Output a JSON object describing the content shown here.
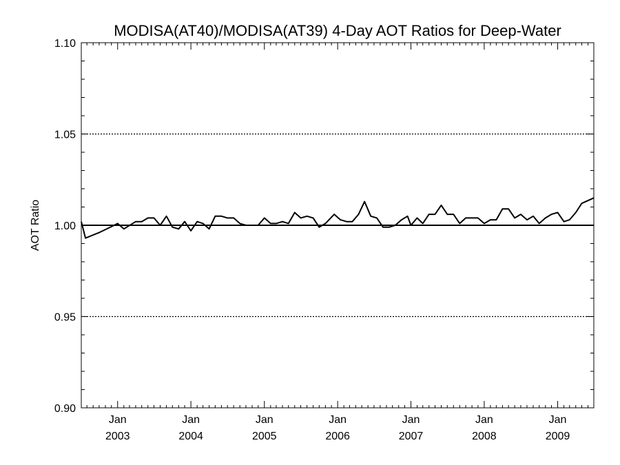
{
  "chart_data": {
    "type": "line",
    "title": "MODISA(AT40)/MODISA(AT39) 4-Day AOT Ratios for Deep-Water",
    "xlabel": "",
    "ylabel": "AOT Ratio",
    "ylim": [
      0.9,
      1.1
    ],
    "xlim": [
      "2002-07-04",
      "2009-06-30"
    ],
    "y_ticks": [
      {
        "value": 0.9,
        "label": "0.90"
      },
      {
        "value": 0.95,
        "label": "0.95"
      },
      {
        "value": 1.0,
        "label": "1.00"
      },
      {
        "value": 1.05,
        "label": "1.05"
      },
      {
        "value": 1.1,
        "label": "1.10"
      }
    ],
    "y_minor_step": 0.01,
    "x_ticks": [
      {
        "date": "2003-01-01",
        "month": "Jan",
        "year": "2003"
      },
      {
        "date": "2004-01-01",
        "month": "Jan",
        "year": "2004"
      },
      {
        "date": "2005-01-01",
        "month": "Jan",
        "year": "2005"
      },
      {
        "date": "2006-01-01",
        "month": "Jan",
        "year": "2006"
      },
      {
        "date": "2007-01-01",
        "month": "Jan",
        "year": "2007"
      },
      {
        "date": "2008-01-01",
        "month": "Jan",
        "year": "2008"
      },
      {
        "date": "2009-01-01",
        "month": "Jan",
        "year": "2009"
      }
    ],
    "grid": "dotted horizontal at 0.95, 1.05",
    "reference_line": 1.0,
    "series": [
      {
        "x": [
          "2002-07-04",
          "2002-07-25",
          "2002-10-01",
          "2002-12-15",
          "2003-01-01",
          "2003-02-01",
          "2003-04-01",
          "2003-05-01",
          "2003-06-01",
          "2003-07-01",
          "2003-08-01",
          "2003-09-01",
          "2003-10-01",
          "2003-11-01",
          "2003-12-01",
          "2004-01-01",
          "2004-02-01",
          "2004-03-01",
          "2004-04-01",
          "2004-05-01",
          "2004-06-01",
          "2004-07-01",
          "2004-08-01",
          "2004-09-01",
          "2004-10-01",
          "2004-11-01",
          "2004-12-01",
          "2005-01-01",
          "2005-02-01",
          "2005-03-01",
          "2005-04-01",
          "2005-05-01",
          "2005-06-01",
          "2005-07-01",
          "2005-08-01",
          "2005-09-01",
          "2005-10-01",
          "2005-11-01",
          "2005-12-15",
          "2006-01-15",
          "2006-02-15",
          "2006-03-15",
          "2006-04-15",
          "2006-05-15",
          "2006-06-15",
          "2006-07-15",
          "2006-08-15",
          "2006-09-15",
          "2006-10-15",
          "2006-11-15",
          "2006-12-15",
          "2007-01-01",
          "2007-02-01",
          "2007-03-01",
          "2007-04-01",
          "2007-05-01",
          "2007-06-01",
          "2007-07-01",
          "2007-08-01",
          "2007-09-01",
          "2007-10-01",
          "2007-11-01",
          "2007-12-01",
          "2008-01-01",
          "2008-02-01",
          "2008-03-01",
          "2008-04-01",
          "2008-05-01",
          "2008-06-01",
          "2008-07-01",
          "2008-08-01",
          "2008-09-01",
          "2008-10-01",
          "2008-11-01",
          "2008-12-01",
          "2009-01-01",
          "2009-02-01",
          "2009-03-01",
          "2009-04-01",
          "2009-05-01",
          "2009-06-30"
        ],
        "y": [
          1.002,
          0.993,
          0.996,
          1.0,
          1.001,
          0.998,
          1.002,
          1.002,
          1.004,
          1.004,
          1.0,
          1.005,
          0.999,
          0.998,
          1.002,
          0.997,
          1.002,
          1.001,
          0.998,
          1.005,
          1.005,
          1.004,
          1.004,
          1.001,
          1.0,
          1.0,
          1.0,
          1.004,
          1.001,
          1.001,
          1.002,
          1.001,
          1.007,
          1.004,
          1.005,
          1.004,
          0.999,
          1.001,
          1.006,
          1.003,
          1.002,
          1.002,
          1.006,
          1.013,
          1.005,
          1.004,
          0.999,
          0.999,
          1.0,
          1.003,
          1.005,
          1.0,
          1.004,
          1.001,
          1.006,
          1.006,
          1.011,
          1.006,
          1.006,
          1.001,
          1.004,
          1.004,
          1.004,
          1.001,
          1.003,
          1.003,
          1.009,
          1.009,
          1.004,
          1.006,
          1.003,
          1.005,
          1.001,
          1.004,
          1.006,
          1.007,
          1.002,
          1.003,
          1.007,
          1.012,
          1.015
        ]
      }
    ]
  }
}
